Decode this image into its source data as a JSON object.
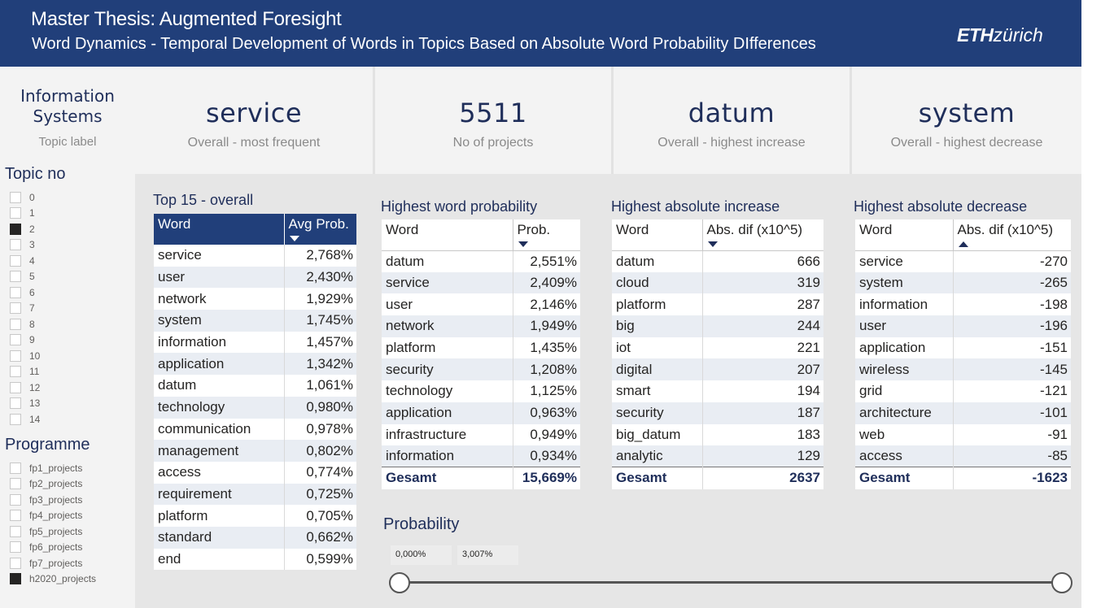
{
  "header": {
    "title": "Master Thesis: Augmented Foresight",
    "subtitle": "Word Dynamics - Temporal Development of Words in Topics Based on Absolute Word Probability DIfferences",
    "logo_bold": "ETH",
    "logo_rest": "zürich"
  },
  "info_card": {
    "value_line1": "Information",
    "value_line2": "Systems",
    "label": "Topic label"
  },
  "kpis": [
    {
      "value": "service",
      "label": "Overall - most frequent"
    },
    {
      "value": "5511",
      "label": "No of projects"
    },
    {
      "value": "datum",
      "label": "Overall - highest increase"
    },
    {
      "value": "system",
      "label": "Overall - highest decrease"
    }
  ],
  "topic_slicer": {
    "title": "Topic no",
    "items": [
      {
        "label": "0",
        "checked": false
      },
      {
        "label": "1",
        "checked": false
      },
      {
        "label": "2",
        "checked": true
      },
      {
        "label": "3",
        "checked": false
      },
      {
        "label": "4",
        "checked": false
      },
      {
        "label": "5",
        "checked": false
      },
      {
        "label": "6",
        "checked": false
      },
      {
        "label": "7",
        "checked": false
      },
      {
        "label": "8",
        "checked": false
      },
      {
        "label": "9",
        "checked": false
      },
      {
        "label": "10",
        "checked": false
      },
      {
        "label": "11",
        "checked": false
      },
      {
        "label": "12",
        "checked": false
      },
      {
        "label": "13",
        "checked": false
      },
      {
        "label": "14",
        "checked": false
      }
    ]
  },
  "programme_slicer": {
    "title": "Programme",
    "items": [
      {
        "label": "fp1_projects",
        "checked": false
      },
      {
        "label": "fp2_projects",
        "checked": false
      },
      {
        "label": "fp3_projects",
        "checked": false
      },
      {
        "label": "fp4_projects",
        "checked": false
      },
      {
        "label": "fp5_projects",
        "checked": false
      },
      {
        "label": "fp6_projects",
        "checked": false
      },
      {
        "label": "fp7_projects",
        "checked": false
      },
      {
        "label": "h2020_projects",
        "checked": true
      }
    ]
  },
  "table_overall": {
    "title": "Top 15 - overall",
    "columns": [
      "Word",
      "Avg Prob."
    ],
    "rows": [
      [
        "service",
        "2,768%"
      ],
      [
        "user",
        "2,430%"
      ],
      [
        "network",
        "1,929%"
      ],
      [
        "system",
        "1,745%"
      ],
      [
        "information",
        "1,457%"
      ],
      [
        "application",
        "1,342%"
      ],
      [
        "datum",
        "1,061%"
      ],
      [
        "technology",
        "0,980%"
      ],
      [
        "communication",
        "0,978%"
      ],
      [
        "management",
        "0,802%"
      ],
      [
        "access",
        "0,774%"
      ],
      [
        "requirement",
        "0,725%"
      ],
      [
        "platform",
        "0,705%"
      ],
      [
        "standard",
        "0,662%"
      ],
      [
        "end",
        "0,599%"
      ]
    ]
  },
  "table_prob": {
    "title": "Highest word probability",
    "columns": [
      "Word",
      "Prob."
    ],
    "rows": [
      [
        "datum",
        "2,551%"
      ],
      [
        "service",
        "2,409%"
      ],
      [
        "user",
        "2,146%"
      ],
      [
        "network",
        "1,949%"
      ],
      [
        "platform",
        "1,435%"
      ],
      [
        "security",
        "1,208%"
      ],
      [
        "technology",
        "1,125%"
      ],
      [
        "application",
        "0,963%"
      ],
      [
        "infrastructure",
        "0,949%"
      ],
      [
        "information",
        "0,934%"
      ]
    ],
    "total": [
      "Gesamt",
      "15,669%"
    ]
  },
  "table_increase": {
    "title": "Highest absolute increase",
    "columns": [
      "Word",
      "Abs. dif (x10^5)"
    ],
    "rows": [
      [
        "datum",
        "666"
      ],
      [
        "cloud",
        "319"
      ],
      [
        "platform",
        "287"
      ],
      [
        "big",
        "244"
      ],
      [
        "iot",
        "221"
      ],
      [
        "digital",
        "207"
      ],
      [
        "smart",
        "194"
      ],
      [
        "security",
        "187"
      ],
      [
        "big_datum",
        "183"
      ],
      [
        "analytic",
        "129"
      ]
    ],
    "total": [
      "Gesamt",
      "2637"
    ]
  },
  "table_decrease": {
    "title": "Highest absolute decrease",
    "columns": [
      "Word",
      "Abs. dif (x10^5)"
    ],
    "rows": [
      [
        "service",
        "-270"
      ],
      [
        "system",
        "-265"
      ],
      [
        "information",
        "-198"
      ],
      [
        "user",
        "-196"
      ],
      [
        "application",
        "-151"
      ],
      [
        "wireless",
        "-145"
      ],
      [
        "grid",
        "-121"
      ],
      [
        "architecture",
        "-101"
      ],
      [
        "web",
        "-91"
      ],
      [
        "access",
        "-85"
      ]
    ],
    "total": [
      "Gesamt",
      "-1623"
    ]
  },
  "probability_slider": {
    "title": "Probability",
    "min_label": "0,000%",
    "max_label": "3,007%",
    "low": 0,
    "high": 1
  }
}
